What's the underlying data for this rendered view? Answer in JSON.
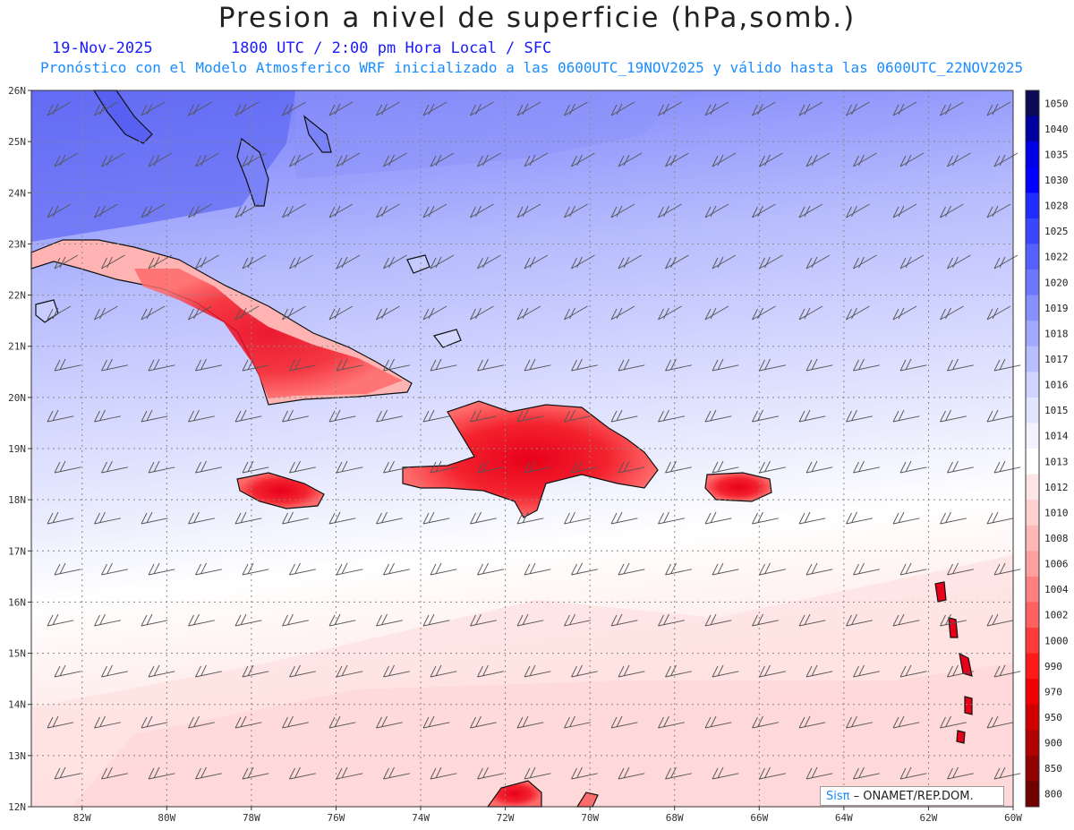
{
  "header": {
    "title": "Presion a nivel de superficie (hPa,somb.)",
    "date": "19-Nov-2025",
    "time": "1800 UTC / 2:00 pm Hora Local / SFC",
    "subtitle": "Pronóstico con el Modelo Atmosferico WRF inicializado a las 0600UTC_19NOV2025 y válido hasta las  0600UTC_22NOV2025"
  },
  "map": {
    "lat_labels": [
      "26N",
      "25N",
      "24N",
      "23N",
      "22N",
      "21N",
      "20N",
      "19N",
      "18N",
      "17N",
      "16N",
      "15N",
      "14N",
      "13N",
      "12N"
    ],
    "lon_labels": [
      "82W",
      "80W",
      "78W",
      "76W",
      "74W",
      "72W",
      "70W",
      "68W",
      "66W",
      "64W",
      "62W",
      "60W"
    ],
    "lat_range": [
      12,
      26
    ],
    "lon_range": [
      -83.2,
      -60
    ]
  },
  "colorbar": {
    "levels": [
      "1050",
      "1040",
      "1035",
      "1030",
      "1028",
      "1025",
      "1022",
      "1020",
      "1019",
      "1018",
      "1017",
      "1016",
      "1015",
      "1014",
      "1013",
      "1012",
      "1010",
      "1008",
      "1006",
      "1004",
      "1002",
      "1000",
      "990",
      "970",
      "950",
      "900",
      "850",
      "800"
    ],
    "colors": [
      "#0a0a55",
      "#0000a0",
      "#0000e6",
      "#0000ff",
      "#1f2bff",
      "#3b46ff",
      "#5560ff",
      "#6d78ff",
      "#8890ff",
      "#a0a8ff",
      "#b8beff",
      "#cfd3ff",
      "#e2e5ff",
      "#f2f3ff",
      "#ffffff",
      "#ffe6e6",
      "#ffd0d0",
      "#ffb8b8",
      "#ffa0a0",
      "#ff8080",
      "#ff6060",
      "#ff3a3a",
      "#ff1a1a",
      "#f00000",
      "#d00000",
      "#b00000",
      "#900000",
      "#700000"
    ]
  },
  "credit": {
    "logo": "Sisπ",
    "text": "– ONAMET/REP.DOM."
  }
}
